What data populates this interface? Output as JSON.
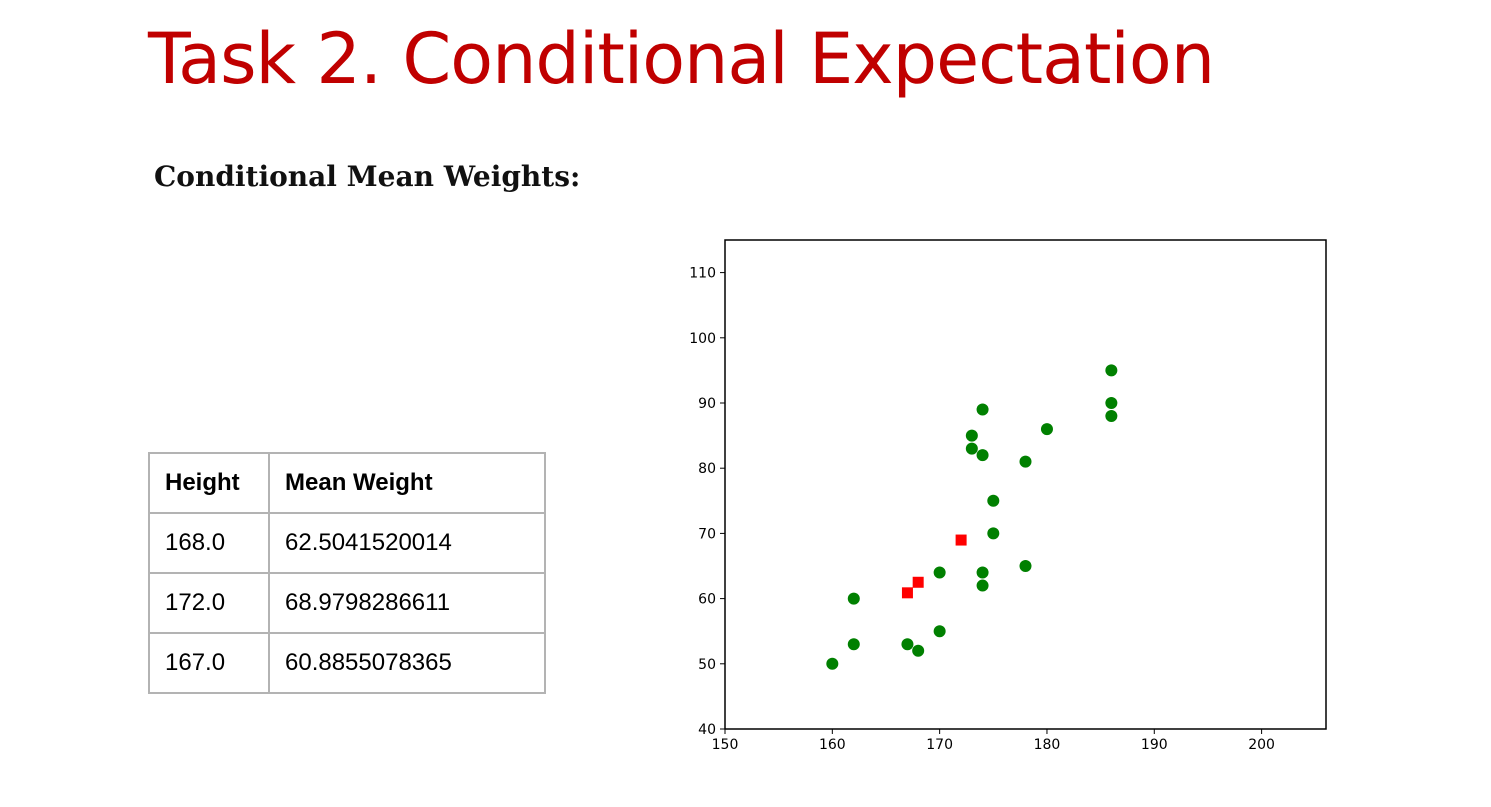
{
  "slide": {
    "title": "Task 2. Conditional Expectation",
    "subtitle": "Conditional Mean Weights:"
  },
  "table": {
    "headers": [
      "Height",
      "Mean Weight"
    ],
    "rows": [
      [
        "168.0",
        "62.5041520014"
      ],
      [
        "172.0",
        "68.9798286611"
      ],
      [
        "167.0",
        "60.8855078365"
      ]
    ]
  },
  "chart_data": {
    "type": "scatter",
    "title": "",
    "xlabel": "",
    "ylabel": "",
    "xlim": [
      150,
      206
    ],
    "ylim": [
      40,
      115
    ],
    "xticks": [
      150,
      160,
      170,
      180,
      190,
      200
    ],
    "yticks": [
      40,
      50,
      60,
      70,
      80,
      90,
      100,
      110
    ],
    "grid": false,
    "legend": "none",
    "series": [
      {
        "marker": "circle",
        "color": "#008000",
        "points": [
          [
            160,
            50
          ],
          [
            162,
            53
          ],
          [
            162,
            60
          ],
          [
            167,
            53
          ],
          [
            168,
            52
          ],
          [
            170,
            55
          ],
          [
            170,
            64
          ],
          [
            173,
            83
          ],
          [
            173,
            85
          ],
          [
            174,
            62
          ],
          [
            174,
            64
          ],
          [
            174,
            82
          ],
          [
            174,
            89
          ],
          [
            175,
            70
          ],
          [
            175,
            75
          ],
          [
            178,
            65
          ],
          [
            178,
            81
          ],
          [
            180,
            86
          ],
          [
            186,
            88
          ],
          [
            186,
            90
          ],
          [
            186,
            95
          ]
        ]
      },
      {
        "marker": "square",
        "color": "#ff0000",
        "points": [
          [
            168,
            62.5041520014
          ],
          [
            172,
            68.9798286611
          ],
          [
            167,
            60.8855078365
          ]
        ]
      }
    ]
  }
}
